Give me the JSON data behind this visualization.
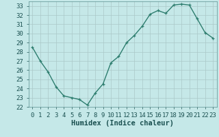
{
  "x": [
    0,
    1,
    2,
    3,
    4,
    5,
    6,
    7,
    8,
    9,
    10,
    11,
    12,
    13,
    14,
    15,
    16,
    17,
    18,
    19,
    20,
    21,
    22,
    23
  ],
  "y": [
    28.5,
    27.0,
    25.8,
    24.2,
    23.2,
    23.0,
    22.8,
    22.2,
    23.5,
    24.5,
    26.8,
    27.5,
    29.0,
    29.8,
    30.8,
    32.1,
    32.5,
    32.2,
    33.1,
    33.2,
    33.1,
    31.6,
    30.1,
    29.5
  ],
  "line_color": "#2d7d6e",
  "marker": "+",
  "bg_color": "#c5e8e8",
  "grid_color": "#aac8c8",
  "xlabel": "Humidex (Indice chaleur)",
  "ylim": [
    22,
    33.5
  ],
  "xlim": [
    -0.5,
    23.5
  ],
  "yticks": [
    22,
    23,
    24,
    25,
    26,
    27,
    28,
    29,
    30,
    31,
    32,
    33
  ],
  "xticks": [
    0,
    1,
    2,
    3,
    4,
    5,
    6,
    7,
    8,
    9,
    10,
    11,
    12,
    13,
    14,
    15,
    16,
    17,
    18,
    19,
    20,
    21,
    22,
    23
  ],
  "xlabel_fontsize": 7.5,
  "tick_fontsize": 6.5,
  "line_width": 1.0,
  "marker_size": 3.5,
  "tick_color": "#1a5050",
  "label_color": "#1a5050"
}
